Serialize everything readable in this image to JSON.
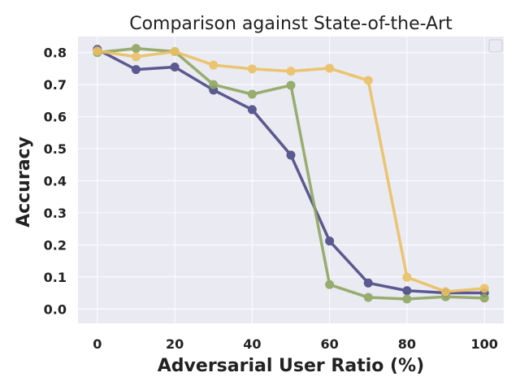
{
  "chart_data": {
    "type": "line",
    "title": "Comparison against State-of-the-Art",
    "xlabel": "Adversarial User Ratio (%)",
    "ylabel": "Accuracy",
    "x": [
      0,
      10,
      20,
      30,
      40,
      50,
      60,
      70,
      80,
      90,
      100
    ],
    "xlim": [
      -5,
      105
    ],
    "ylim": [
      -0.045,
      0.85
    ],
    "xticks": [
      "0",
      "20",
      "40",
      "60",
      "80",
      "100"
    ],
    "yticks": [
      "0.0",
      "0.1",
      "0.2",
      "0.3",
      "0.4",
      "0.5",
      "0.6",
      "0.7",
      "0.8"
    ],
    "grid": true,
    "legend": "top-right (empty)",
    "series": [
      {
        "color": "#4b4a86",
        "values": [
          0.81,
          0.747,
          0.755,
          0.683,
          0.622,
          0.48,
          0.212,
          0.081,
          0.057,
          0.05,
          0.05
        ]
      },
      {
        "color": "#8fa660",
        "values": [
          0.8,
          0.813,
          0.803,
          0.7,
          0.67,
          0.698,
          0.076,
          0.036,
          0.031,
          0.038,
          0.034
        ]
      },
      {
        "color": "#ebc062",
        "values": [
          0.805,
          0.787,
          0.803,
          0.761,
          0.749,
          0.742,
          0.751,
          0.713,
          0.099,
          0.054,
          0.064
        ]
      }
    ]
  }
}
